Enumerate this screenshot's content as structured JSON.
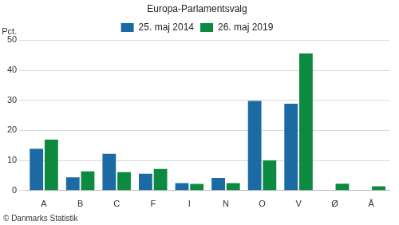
{
  "chart_data": {
    "type": "bar",
    "title": "Europa-Parlamentsvalg",
    "y_label": "Pct.",
    "source": "© Danmarks Statistik",
    "categories": [
      "A",
      "B",
      "C",
      "F",
      "I",
      "N",
      "O",
      "V",
      "Ø",
      "Å"
    ],
    "series": [
      {
        "name": "25. maj 2014",
        "color": "#1c6aa4",
        "values": [
          13.9,
          4.4,
          12.2,
          5.6,
          2.5,
          4.2,
          29.8,
          28.9,
          null,
          null
        ]
      },
      {
        "name": "26. maj 2019",
        "color": "#0b8a40",
        "values": [
          16.9,
          6.4,
          6.1,
          7.2,
          2.2,
          2.5,
          10.0,
          45.6,
          2.3,
          1.4
        ]
      }
    ],
    "ylim": [
      0,
      50
    ],
    "yticks": [
      0,
      10,
      20,
      30,
      40,
      50
    ],
    "grid": true,
    "legend": "top"
  }
}
